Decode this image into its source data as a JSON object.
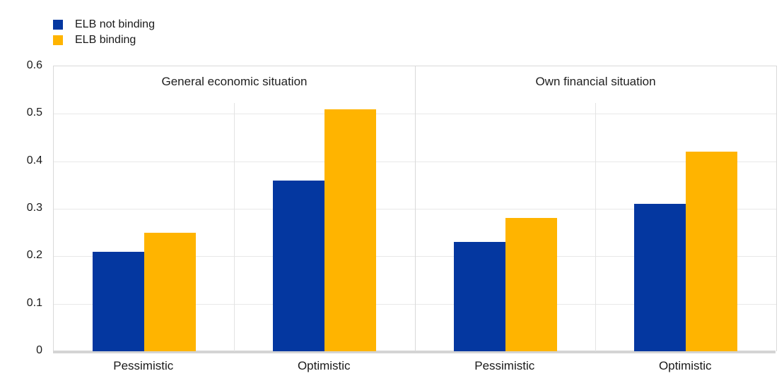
{
  "legend": {
    "items": [
      {
        "label": "ELB not binding",
        "color": "#0437A0"
      },
      {
        "label": "ELB binding",
        "color": "#FFB400"
      }
    ]
  },
  "chart_data": {
    "type": "bar",
    "title": "",
    "xlabel": "",
    "ylabel": "",
    "ylim": [
      0,
      0.6
    ],
    "ytick_step": 0.1,
    "ytick_labels": [
      "0.6",
      "0.5",
      "0.4",
      "0.3",
      "0.2",
      "0.1",
      "0"
    ],
    "grid": true,
    "legend_position": "top-left",
    "legend_entries": [
      "ELB not binding",
      "ELB binding"
    ],
    "panels": [
      {
        "title": "General economic situation",
        "categories": [
          "Pessimistic",
          "Optimistic"
        ],
        "series": [
          {
            "name": "ELB not binding",
            "color": "#0437A0",
            "values": [
              0.21,
              0.36
            ]
          },
          {
            "name": "ELB binding",
            "color": "#FFB400",
            "values": [
              0.25,
              0.51
            ]
          }
        ]
      },
      {
        "title": "Own financial situation",
        "categories": [
          "Pessimistic",
          "Optimistic"
        ],
        "series": [
          {
            "name": "ELB not binding",
            "color": "#0437A0",
            "values": [
              0.23,
              0.31
            ]
          },
          {
            "name": "ELB binding",
            "color": "#FFB400",
            "values": [
              0.28,
              0.42
            ]
          }
        ]
      }
    ]
  }
}
